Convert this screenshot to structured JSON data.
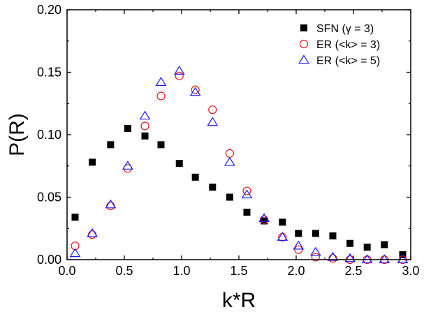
{
  "chart_data": {
    "type": "scatter",
    "xlabel": "k*R",
    "ylabel": "P(R)",
    "xlim": [
      0.0,
      3.0
    ],
    "ylim": [
      0.0,
      0.2
    ],
    "xticks": [
      "0.0",
      "0.5",
      "1.0",
      "1.5",
      "2.0",
      "2.5",
      "3.0"
    ],
    "yticks": [
      "0.00",
      "0.05",
      "0.10",
      "0.15",
      "0.20"
    ],
    "legend_position": "top-right",
    "series": [
      {
        "name": "SFN (γ = 3)",
        "marker": "square-filled",
        "color": "#000000",
        "points": [
          [
            0.07,
            0.034
          ],
          [
            0.22,
            0.078
          ],
          [
            0.38,
            0.092
          ],
          [
            0.53,
            0.105
          ],
          [
            0.68,
            0.099
          ],
          [
            0.82,
            0.092
          ],
          [
            0.98,
            0.077
          ],
          [
            1.12,
            0.066
          ],
          [
            1.27,
            0.058
          ],
          [
            1.42,
            0.05
          ],
          [
            1.57,
            0.038
          ],
          [
            1.72,
            0.031
          ],
          [
            1.88,
            0.03
          ],
          [
            2.02,
            0.021
          ],
          [
            2.17,
            0.021
          ],
          [
            2.32,
            0.019
          ],
          [
            2.47,
            0.013
          ],
          [
            2.62,
            0.01
          ],
          [
            2.77,
            0.012
          ],
          [
            2.93,
            0.004
          ]
        ]
      },
      {
        "name": "ER (<k> = 3)",
        "marker": "circle-open",
        "color": "#e8141e",
        "points": [
          [
            0.07,
            0.011
          ],
          [
            0.22,
            0.02
          ],
          [
            0.38,
            0.043
          ],
          [
            0.53,
            0.073
          ],
          [
            0.68,
            0.107
          ],
          [
            0.82,
            0.131
          ],
          [
            0.98,
            0.147
          ],
          [
            1.12,
            0.136
          ],
          [
            1.27,
            0.12
          ],
          [
            1.42,
            0.085
          ],
          [
            1.57,
            0.055
          ],
          [
            1.72,
            0.032
          ],
          [
            1.88,
            0.018
          ],
          [
            2.02,
            0.008
          ],
          [
            2.17,
            0.002
          ],
          [
            2.32,
            0.001
          ],
          [
            2.47,
            0.0
          ],
          [
            2.62,
            0.0
          ],
          [
            2.77,
            0.0
          ],
          [
            2.93,
            0.0
          ]
        ]
      },
      {
        "name": "ER (<k> = 5)",
        "marker": "triangle-open",
        "color": "#1a1aff",
        "points": [
          [
            0.07,
            0.005
          ],
          [
            0.22,
            0.021
          ],
          [
            0.38,
            0.044
          ],
          [
            0.53,
            0.075
          ],
          [
            0.68,
            0.115
          ],
          [
            0.82,
            0.142
          ],
          [
            0.98,
            0.151
          ],
          [
            1.12,
            0.134
          ],
          [
            1.27,
            0.11
          ],
          [
            1.42,
            0.078
          ],
          [
            1.57,
            0.052
          ],
          [
            1.72,
            0.033
          ],
          [
            1.88,
            0.018
          ],
          [
            2.02,
            0.011
          ],
          [
            2.17,
            0.006
          ],
          [
            2.32,
            0.002
          ],
          [
            2.47,
            0.001
          ],
          [
            2.62,
            0.0
          ],
          [
            2.77,
            0.0
          ],
          [
            2.93,
            0.0
          ]
        ]
      }
    ]
  }
}
